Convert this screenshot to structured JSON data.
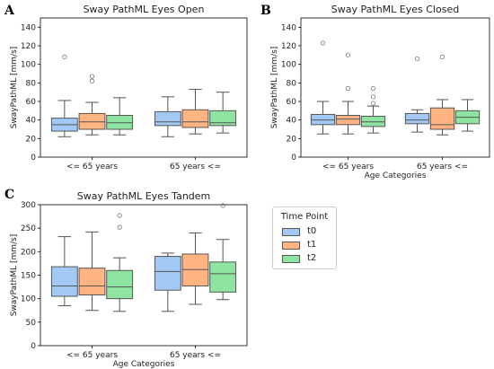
{
  "panel_letters": [
    "A",
    "B",
    "C"
  ],
  "legend": {
    "title": "Time Point",
    "items": [
      {
        "label": "t0",
        "color": "#a1c9f4"
      },
      {
        "label": "t1",
        "color": "#ffb482"
      },
      {
        "label": "t2",
        "color": "#8de5a1"
      }
    ]
  },
  "chart_data": [
    {
      "type": "boxplot",
      "title": "Sway PathML Eyes Open",
      "xlabel": "",
      "ylabel": "SwayPathML [mm/s]",
      "ylim": [
        0,
        150
      ],
      "yticks": [
        0,
        20,
        40,
        60,
        80,
        100,
        120,
        140
      ],
      "categories": [
        "<= 65 years",
        "65 years <="
      ],
      "series": [
        {
          "name": "t0",
          "color": "#a1c9f4",
          "boxes": [
            {
              "whislo": 22,
              "q1": 28,
              "med": 35,
              "q3": 42,
              "whishi": 61,
              "fliers": [
                108
              ]
            },
            {
              "whislo": 22,
              "q1": 34,
              "med": 38,
              "q3": 49,
              "whishi": 65,
              "fliers": []
            }
          ]
        },
        {
          "name": "t1",
          "color": "#ffb482",
          "boxes": [
            {
              "whislo": 24,
              "q1": 30,
              "med": 38,
              "q3": 47,
              "whishi": 59,
              "fliers": [
                82,
                87
              ]
            },
            {
              "whislo": 25,
              "q1": 32,
              "med": 38,
              "q3": 51,
              "whishi": 73,
              "fliers": []
            }
          ]
        },
        {
          "name": "t2",
          "color": "#8de5a1",
          "boxes": [
            {
              "whislo": 24,
              "q1": 30,
              "med": 37,
              "q3": 45,
              "whishi": 64,
              "fliers": []
            },
            {
              "whislo": 26,
              "q1": 34,
              "med": 37,
              "q3": 50,
              "whishi": 70,
              "fliers": []
            }
          ]
        }
      ]
    },
    {
      "type": "boxplot",
      "title": "Sway PathML Eyes Closed",
      "xlabel": "Age Categories",
      "ylabel": "SwayPathML [mm/s]",
      "ylim": [
        0,
        150
      ],
      "yticks": [
        0,
        20,
        40,
        60,
        80,
        100,
        120,
        140
      ],
      "categories": [
        "<= 65 years",
        "65 years <="
      ],
      "series": [
        {
          "name": "t0",
          "color": "#a1c9f4",
          "boxes": [
            {
              "whislo": 25,
              "q1": 35,
              "med": 40,
              "q3": 46,
              "whishi": 60,
              "fliers": [
                123
              ]
            },
            {
              "whislo": 27,
              "q1": 36,
              "med": 40,
              "q3": 47,
              "whishi": 51,
              "fliers": [
                106
              ]
            }
          ]
        },
        {
          "name": "t1",
          "color": "#ffb482",
          "boxes": [
            {
              "whislo": 25,
              "q1": 35,
              "med": 41,
              "q3": 45,
              "whishi": 60,
              "fliers": [
                74,
                110
              ]
            },
            {
              "whislo": 24,
              "q1": 30,
              "med": 35,
              "q3": 53,
              "whishi": 62,
              "fliers": [
                108
              ]
            }
          ]
        },
        {
          "name": "t2",
          "color": "#8de5a1",
          "boxes": [
            {
              "whislo": 26,
              "q1": 33,
              "med": 38,
              "q3": 44,
              "whishi": 55,
              "fliers": [
                58,
                65,
                74
              ]
            },
            {
              "whislo": 28,
              "q1": 36,
              "med": 43,
              "q3": 50,
              "whishi": 62,
              "fliers": []
            }
          ]
        }
      ]
    },
    {
      "type": "boxplot",
      "title": "Sway PathML Eyes Tandem",
      "xlabel": "Age Categories",
      "ylabel": "SwayPathML [mm/s]",
      "ylim": [
        0,
        300
      ],
      "yticks": [
        0,
        50,
        100,
        150,
        200,
        250,
        300
      ],
      "categories": [
        "<= 65 years",
        "65 years <="
      ],
      "series": [
        {
          "name": "t0",
          "color": "#a1c9f4",
          "boxes": [
            {
              "whislo": 85,
              "q1": 105,
              "med": 127,
              "q3": 168,
              "whishi": 232,
              "fliers": []
            },
            {
              "whislo": 73,
              "q1": 118,
              "med": 158,
              "q3": 190,
              "whishi": 197,
              "fliers": []
            }
          ]
        },
        {
          "name": "t1",
          "color": "#ffb482",
          "boxes": [
            {
              "whislo": 75,
              "q1": 108,
              "med": 127,
              "q3": 165,
              "whishi": 242,
              "fliers": []
            },
            {
              "whislo": 88,
              "q1": 127,
              "med": 162,
              "q3": 195,
              "whishi": 240,
              "fliers": []
            }
          ]
        },
        {
          "name": "t2",
          "color": "#8de5a1",
          "boxes": [
            {
              "whislo": 73,
              "q1": 100,
              "med": 125,
              "q3": 160,
              "whishi": 187,
              "fliers": [
                252,
                277
              ]
            },
            {
              "whislo": 98,
              "q1": 114,
              "med": 153,
              "q3": 178,
              "whishi": 226,
              "fliers": [
                298
              ]
            }
          ]
        }
      ]
    }
  ]
}
